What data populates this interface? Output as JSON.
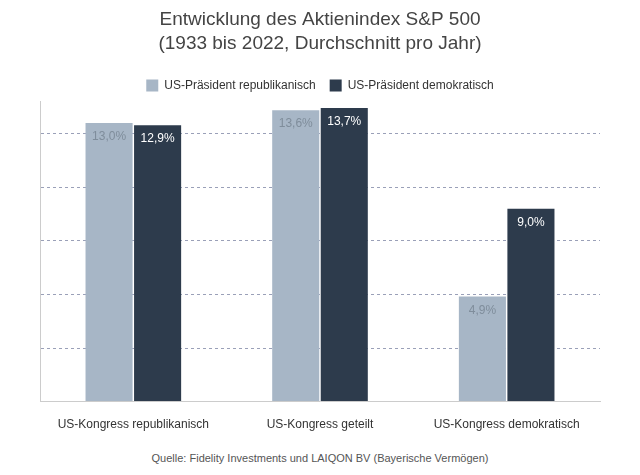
{
  "chart_data": {
    "type": "bar",
    "title": "Entwicklung des Aktienindex S&P 500",
    "subtitle": "(1933 bis 2022, Durchschnitt pro Jahr)",
    "annotations": [
      "Quelle: Fidelity Investments und LAIQON BV (Bayerische Vermögen)"
    ],
    "categories": [
      "US-Kongress republikanisch",
      "US-Kongress geteilt",
      "US-Kongress demokratisch"
    ],
    "series": [
      {
        "name": "US-Präsident republikanisch",
        "color": "#a7b6c6",
        "values": [
          13.0,
          13.6,
          4.9
        ],
        "value_labels": [
          "13,0%",
          "13,6%",
          "4,9%"
        ]
      },
      {
        "name": "US-Präsident demokratisch",
        "color": "#2d3b4c",
        "values": [
          12.9,
          13.7,
          9.0
        ],
        "value_labels": [
          "12,9%",
          "13,7%",
          "9,0%"
        ]
      }
    ],
    "ylim": [
      0,
      14
    ],
    "yticks": [
      0,
      2.5,
      5,
      7.5,
      10,
      12.5
    ],
    "grid": true,
    "legend": "top",
    "data_labels": true,
    "tick_labels": "x"
  }
}
